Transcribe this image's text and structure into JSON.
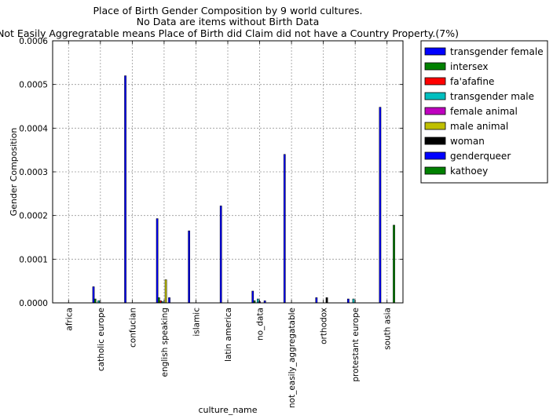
{
  "chart_data": {
    "type": "bar",
    "title": [
      "Place of Birth Gender Composition by 9 world cultures.",
      "No Data are items without Birth Data",
      "Not Easily Aggregratable means Place of Birth did Claim did not have a Country Property.(7%)"
    ],
    "xlabel": "culture_name",
    "ylabel": "Gender Composition",
    "ylim": [
      0,
      0.0006
    ],
    "yticks": [
      0.0,
      0.0001,
      0.0002,
      0.0003,
      0.0004,
      0.0005,
      0.0006
    ],
    "ytick_labels": [
      "0.0000",
      "0.0001",
      "0.0002",
      "0.0003",
      "0.0004",
      "0.0005",
      "0.0006"
    ],
    "grid": true,
    "legend_position": "outside-right-top",
    "categories": [
      "africa",
      "catholic europe",
      "confucian",
      "english speaking",
      "islamic",
      "latin america",
      "no_data",
      "not_easily_aggregatable",
      "orthodox",
      "protestant europe",
      "south asia"
    ],
    "series": [
      {
        "name": "transgender female",
        "color": "#0000ff",
        "values": [
          0,
          3.7e-05,
          0.00052,
          0.000193,
          0.000165,
          0.000222,
          2.7e-05,
          0.00034,
          1.2e-05,
          9e-06,
          0.000448
        ]
      },
      {
        "name": "intersex",
        "color": "#008000",
        "values": [
          0,
          9e-06,
          0,
          1.2e-05,
          0,
          0,
          5e-06,
          0,
          0,
          0,
          0
        ]
      },
      {
        "name": "fa'afafine",
        "color": "#ff0000",
        "values": [
          0,
          0,
          0,
          5e-06,
          0,
          0,
          0,
          0,
          0,
          0,
          0
        ]
      },
      {
        "name": "transgender male",
        "color": "#00bfbf",
        "values": [
          0,
          5e-06,
          0,
          3e-06,
          0,
          0,
          9e-06,
          0,
          0,
          9e-06,
          0
        ]
      },
      {
        "name": "female animal",
        "color": "#bf00bf",
        "values": [
          0,
          0,
          0,
          0,
          0,
          0,
          3e-06,
          0,
          0,
          0,
          0
        ]
      },
      {
        "name": "male animal",
        "color": "#bfbf00",
        "values": [
          0,
          0,
          0,
          5.3e-05,
          0,
          0,
          0,
          0,
          0,
          0,
          0
        ]
      },
      {
        "name": "woman",
        "color": "#000000",
        "values": [
          0,
          0,
          0,
          0,
          0,
          0,
          0,
          0,
          1.2e-05,
          0,
          0
        ]
      },
      {
        "name": "genderqueer",
        "color": "#0000ff",
        "values": [
          0,
          0,
          0,
          1.2e-05,
          0,
          0,
          5e-06,
          0,
          0,
          0,
          0
        ]
      },
      {
        "name": "kathoey",
        "color": "#008000",
        "values": [
          0,
          0,
          0,
          0,
          0,
          0,
          0,
          0,
          0,
          0,
          0.000178
        ]
      }
    ]
  }
}
